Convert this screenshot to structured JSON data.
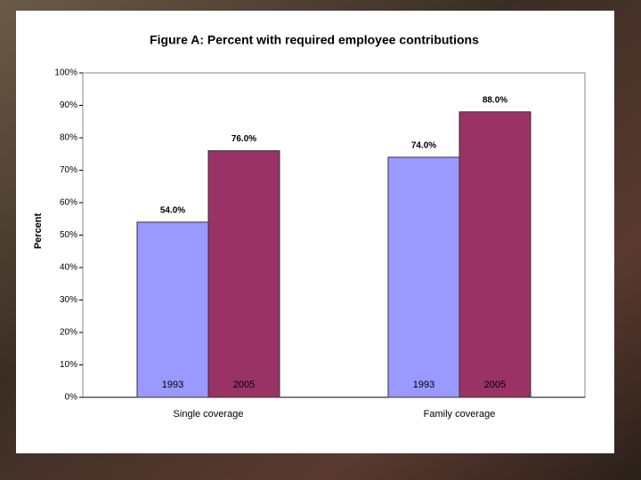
{
  "chart_data": {
    "type": "bar",
    "title": "Figure A: Percent with required employee contributions",
    "y_label": "Percent",
    "categories": [
      "Single coverage",
      "Family coverage"
    ],
    "series": [
      {
        "name": "1993",
        "color": "#9999ff",
        "values": [
          54,
          74
        ],
        "value_labels": [
          "54.0%",
          "74.0%"
        ]
      },
      {
        "name": "2005",
        "color": "#993366",
        "values": [
          76,
          88
        ],
        "value_labels": [
          "76.0%",
          "88.0%"
        ]
      }
    ],
    "ylim": [
      0,
      100
    ],
    "yticks": [
      {
        "value": 0,
        "label": "0%"
      },
      {
        "value": 10,
        "label": "10%"
      },
      {
        "value": 20,
        "label": "20%"
      },
      {
        "value": 30,
        "label": "30%"
      },
      {
        "value": 40,
        "label": "40%"
      },
      {
        "value": 50,
        "label": "50%"
      },
      {
        "value": 60,
        "label": "60%"
      },
      {
        "value": 70,
        "label": "70%"
      },
      {
        "value": 80,
        "label": "80%"
      },
      {
        "value": 90,
        "label": "90%"
      },
      {
        "value": 100,
        "label": "100%"
      }
    ],
    "grid": false
  }
}
